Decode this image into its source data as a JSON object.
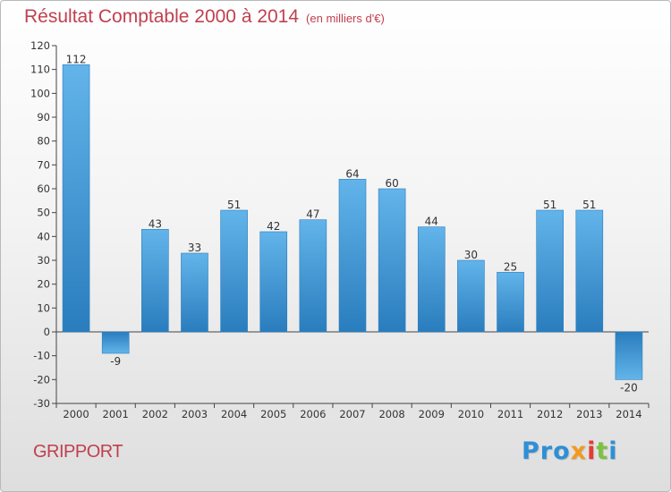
{
  "header": {
    "title": "Résultat Comptable 2000 à 2014",
    "subtitle": "(en milliers d'€)"
  },
  "footer": {
    "commune": "GRIPPORT",
    "logo": [
      "Pro",
      "x",
      "i",
      "t",
      "i"
    ]
  },
  "colors": {
    "title": "#c0404e",
    "bar_light": "#62b4ea",
    "bar_dark": "#2a7dbd",
    "axis": "#444444",
    "grid": "#d7d7d7"
  },
  "chart_data": {
    "type": "bar",
    "title": "Résultat Comptable 2000 à 2014",
    "subtitle": "(en milliers d'€)",
    "categories": [
      "2000",
      "2001",
      "2002",
      "2003",
      "2004",
      "2005",
      "2006",
      "2007",
      "2008",
      "2009",
      "2010",
      "2011",
      "2012",
      "2013",
      "2014"
    ],
    "values": [
      112,
      -9,
      43,
      33,
      51,
      42,
      47,
      64,
      60,
      44,
      30,
      25,
      51,
      51,
      -20
    ],
    "ylim": [
      -30,
      120
    ],
    "yticks": [
      -30,
      -20,
      -10,
      0,
      10,
      20,
      30,
      40,
      50,
      60,
      70,
      80,
      90,
      100,
      110,
      120
    ],
    "grid": false,
    "xlabel": "",
    "ylabel": ""
  }
}
